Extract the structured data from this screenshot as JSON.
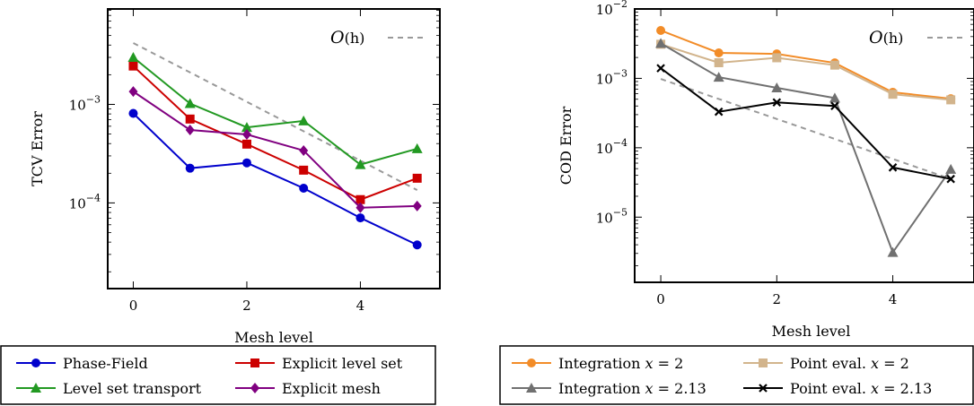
{
  "chart_data": [
    {
      "type": "line",
      "xlabel": "Mesh level",
      "ylabel": "TCV Error",
      "yscale": "log",
      "xlim": [
        -0.45,
        5.4
      ],
      "ylim": [
        1.35e-05,
        0.0093
      ],
      "x_ticks": [
        "0",
        "2",
        "4"
      ],
      "y_ticks": [
        {
          "base": "10",
          "exp": "−3"
        },
        {
          "base": "10",
          "exp": "−4"
        }
      ],
      "reference": {
        "label_main": "O",
        "label_arg": "(h)",
        "color": "#999999",
        "x": [
          0,
          5
        ],
        "y": [
          0.0042,
          0.000135
        ]
      },
      "series": [
        {
          "name": "Phase-Field",
          "color": "#0000cc",
          "marker": "circle",
          "x": [
            0,
            1,
            2,
            3,
            4,
            5
          ],
          "y": [
            0.00081,
            0.000225,
            0.000255,
            0.000141,
            7.05e-05,
            3.75e-05
          ]
        },
        {
          "name": "Explicit level set",
          "color": "#cc0000",
          "marker": "square",
          "x": [
            0,
            1,
            2,
            3,
            4,
            5
          ],
          "y": [
            0.00245,
            0.00071,
            0.000395,
            0.000215,
            0.000108,
            0.000178
          ]
        },
        {
          "name": "Level set transport",
          "color": "#229922",
          "marker": "triangle",
          "x": [
            0,
            1,
            2,
            3,
            4,
            5
          ],
          "y": [
            0.003,
            0.00102,
            0.000585,
            0.00068,
            0.000245,
            0.000355
          ]
        },
        {
          "name": "Explicit mesh",
          "color": "#800080",
          "marker": "diamond",
          "x": [
            0,
            1,
            2,
            3,
            4,
            5
          ],
          "y": [
            0.00135,
            0.00055,
            0.000495,
            0.00034,
            8.95e-05,
            9.3e-05
          ]
        }
      ]
    },
    {
      "type": "line",
      "xlabel": "Mesh level",
      "ylabel": "COD Error",
      "yscale": "log",
      "xlim": [
        -0.45,
        5.4
      ],
      "ylim": [
        1.15e-06,
        0.01
      ],
      "x_ticks": [
        "0",
        "2",
        "4"
      ],
      "y_ticks": [
        {
          "base": "10",
          "exp": "−2"
        },
        {
          "base": "10",
          "exp": "−3"
        },
        {
          "base": "10",
          "exp": "−4"
        },
        {
          "base": "10",
          "exp": "−5"
        }
      ],
      "reference": {
        "label_main": "O",
        "label_arg": "(h)",
        "color": "#999999",
        "x": [
          0,
          5
        ],
        "y": [
          0.00098,
          3.55e-05
        ]
      },
      "series": [
        {
          "name": "Integration",
          "name_math": "x = 2",
          "color": "#f28c28",
          "marker": "circle",
          "x": [
            0,
            1,
            2,
            3,
            4,
            5
          ],
          "y": [
            0.0049,
            0.00233,
            0.00225,
            0.00167,
            0.00063,
            0.00051
          ]
        },
        {
          "name": "Point eval.",
          "name_math": "x = 2",
          "color": "#d2b48c",
          "marker": "square",
          "x": [
            0,
            1,
            2,
            3,
            4,
            5
          ],
          "y": [
            0.0031,
            0.00168,
            0.00198,
            0.00155,
            0.00059,
            0.00049
          ]
        },
        {
          "name": "Integration",
          "name_math": "x = 2.13",
          "color": "#707070",
          "marker": "triangle",
          "x": [
            0,
            1,
            2,
            3,
            4,
            5
          ],
          "y": [
            0.0032,
            0.00104,
            0.00073,
            0.00052,
            3.1e-06,
            4.9e-05
          ]
        },
        {
          "name": "Point eval.",
          "name_math": "x = 2.13",
          "color": "#000000",
          "marker": "x",
          "x": [
            0,
            1,
            2,
            3,
            4,
            5
          ],
          "y": [
            0.0014,
            0.00033,
            0.00045,
            0.0004,
            5.2e-05,
            3.55e-05
          ]
        }
      ]
    }
  ]
}
